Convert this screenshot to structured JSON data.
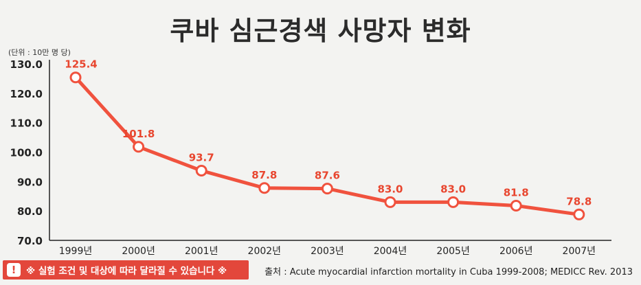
{
  "header": {
    "title": "쿠바 심근경색 사망자 변화"
  },
  "unit_label": "(단위 : 10만 명 당)",
  "chart_data": {
    "type": "line",
    "title": "쿠바 심근경색 사망자 변화",
    "categories": [
      "1999년",
      "2000년",
      "2001년",
      "2002년",
      "2003년",
      "2004년",
      "2005년",
      "2006년",
      "2007년"
    ],
    "values": [
      125.4,
      101.8,
      93.7,
      87.8,
      87.6,
      83.0,
      83.0,
      81.8,
      78.8
    ],
    "data_labels": [
      "125.4",
      "101.8",
      "93.7",
      "87.8",
      "87.6",
      "83.0",
      "83.0",
      "81.8",
      "78.8"
    ],
    "y_ticks": [
      "130.0",
      "120.0",
      "110.0",
      "100.0",
      "90.0",
      "80.0",
      "70.0"
    ],
    "ylim": [
      70,
      130
    ],
    "line_color": "#f0523e",
    "label_color": "#e8462f",
    "grid": false
  },
  "footer": {
    "disclaimer": "※ 실험 조건 및 대상에 따라 달라질 수 있습니다 ※",
    "warn_icon": "!",
    "source": "출처 : Acute myocardial infarction mortality in Cuba 1999-2008; MEDICC Rev. 2013"
  }
}
